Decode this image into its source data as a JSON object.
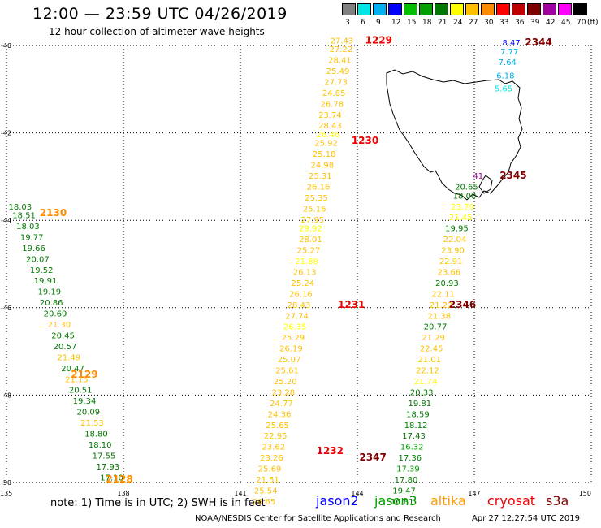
{
  "header": {
    "title": "12:00  —  23:59  UTC  04/26/2019",
    "subtitle": "12 hour collection of altimeter wave heights"
  },
  "color_scale": {
    "unit_label": "(ft)",
    "items": [
      {
        "label": "3",
        "color": "#808080"
      },
      {
        "label": "6",
        "color": "#00e5e5"
      },
      {
        "label": "9",
        "color": "#00b0f0"
      },
      {
        "label": "12",
        "color": "#0000ff"
      },
      {
        "label": "15",
        "color": "#00c000"
      },
      {
        "label": "18",
        "color": "#00a000"
      },
      {
        "label": "21",
        "color": "#007800"
      },
      {
        "label": "24",
        "color": "#ffff00"
      },
      {
        "label": "27",
        "color": "#ffc000"
      },
      {
        "label": "30",
        "color": "#ff8c00"
      },
      {
        "label": "33",
        "color": "#ff0000"
      },
      {
        "label": "36",
        "color": "#c00000"
      },
      {
        "label": "39",
        "color": "#800000"
      },
      {
        "label": "42",
        "color": "#a000a0"
      },
      {
        "label": "45",
        "color": "#ff00ff"
      },
      {
        "label": "70",
        "color": "#000000"
      }
    ]
  },
  "axes": {
    "lat_labels": [
      "-40",
      "-42",
      "-44",
      "-46",
      "-48",
      "-50"
    ],
    "lon_labels": [
      "135",
      "138",
      "141",
      "144",
      "147",
      "150"
    ]
  },
  "time_labels": [
    {
      "text": "1229",
      "lon": 144.2,
      "lat": -39.95,
      "color": "#ee0000"
    },
    {
      "text": "2344",
      "lon": 148.3,
      "lat": -40.0,
      "color": "#800000"
    },
    {
      "text": "1230",
      "lon": 143.85,
      "lat": -42.25,
      "color": "#ee0000"
    },
    {
      "text": "2345",
      "lon": 147.65,
      "lat": -43.05,
      "color": "#800000"
    },
    {
      "text": "2130",
      "lon": 135.85,
      "lat": -43.9,
      "color": "#ff8c00"
    },
    {
      "text": "1231",
      "lon": 143.5,
      "lat": -46.0,
      "color": "#ee0000"
    },
    {
      "text": "2346",
      "lon": 146.35,
      "lat": -46.0,
      "color": "#800000"
    },
    {
      "text": "2129",
      "lon": 136.65,
      "lat": -47.6,
      "color": "#ff8c00"
    },
    {
      "text": "1232",
      "lon": 142.95,
      "lat": -49.35,
      "color": "#ee0000"
    },
    {
      "text": "2347",
      "lon": 144.05,
      "lat": -49.5,
      "color": "#800000"
    },
    {
      "text": "2128",
      "lon": 137.55,
      "lat": -50.0,
      "color": "#ff8c00"
    }
  ],
  "tracks": [
    {
      "name": "2128-2130 pass (west)",
      "points": [
        {
          "v": "18.03",
          "lon": 135.35,
          "lat": -43.75,
          "color": "#007800"
        },
        {
          "v": "18.51",
          "lon": 135.45,
          "lat": -43.95,
          "color": "#007800"
        },
        {
          "v": "18.03",
          "lon": 135.55,
          "lat": -44.2,
          "color": "#007800"
        },
        {
          "v": "19.77",
          "lon": 135.65,
          "lat": -44.45,
          "color": "#007800"
        },
        {
          "v": "19.66",
          "lon": 135.7,
          "lat": -44.7,
          "color": "#007800"
        },
        {
          "v": "20.07",
          "lon": 135.8,
          "lat": -44.95,
          "color": "#007800"
        },
        {
          "v": "19.52",
          "lon": 135.9,
          "lat": -45.2,
          "color": "#007800"
        },
        {
          "v": "19.91",
          "lon": 136.0,
          "lat": -45.45,
          "color": "#007800"
        },
        {
          "v": "19.19",
          "lon": 136.1,
          "lat": -45.7,
          "color": "#007800"
        },
        {
          "v": "20.86",
          "lon": 136.15,
          "lat": -45.95,
          "color": "#007800"
        },
        {
          "v": "20.69",
          "lon": 136.25,
          "lat": -46.2,
          "color": "#007800"
        },
        {
          "v": "21.30",
          "lon": 136.35,
          "lat": -46.45,
          "color": "#ffc000"
        },
        {
          "v": "20.45",
          "lon": 136.45,
          "lat": -46.7,
          "color": "#007800"
        },
        {
          "v": "20.57",
          "lon": 136.5,
          "lat": -46.95,
          "color": "#007800"
        },
        {
          "v": "21.49",
          "lon": 136.6,
          "lat": -47.2,
          "color": "#ffc000"
        },
        {
          "v": "20.47",
          "lon": 136.7,
          "lat": -47.45,
          "color": "#007800"
        },
        {
          "v": "21.15",
          "lon": 136.8,
          "lat": -47.7,
          "color": "#ffc000"
        },
        {
          "v": "20.51",
          "lon": 136.9,
          "lat": -47.95,
          "color": "#007800"
        },
        {
          "v": "19.34",
          "lon": 137.0,
          "lat": -48.2,
          "color": "#007800"
        },
        {
          "v": "20.09",
          "lon": 137.1,
          "lat": -48.45,
          "color": "#007800"
        },
        {
          "v": "21.53",
          "lon": 137.2,
          "lat": -48.7,
          "color": "#ffc000"
        },
        {
          "v": "18.80",
          "lon": 137.3,
          "lat": -48.95,
          "color": "#007800"
        },
        {
          "v": "18.10",
          "lon": 137.4,
          "lat": -49.2,
          "color": "#007800"
        },
        {
          "v": "17.55",
          "lon": 137.5,
          "lat": -49.45,
          "color": "#007800"
        },
        {
          "v": "17.93",
          "lon": 137.6,
          "lat": -49.7,
          "color": "#007800"
        },
        {
          "v": "17.10",
          "lon": 137.7,
          "lat": -49.95,
          "color": "#007800"
        }
      ]
    },
    {
      "name": "1229-1232 pass (altika)",
      "points": [
        {
          "v": "27.43",
          "lon": 143.6,
          "lat": -39.95,
          "color": "#ffc000"
        },
        {
          "v": "27.22",
          "lon": 143.58,
          "lat": -40.15,
          "color": "#ffc000"
        },
        {
          "v": "28.41",
          "lon": 143.55,
          "lat": -40.4,
          "color": "#ffc000"
        },
        {
          "v": "25.49",
          "lon": 143.5,
          "lat": -40.65,
          "color": "#ffc000"
        },
        {
          "v": "27.73",
          "lon": 143.45,
          "lat": -40.9,
          "color": "#ffc000"
        },
        {
          "v": "24.85",
          "lon": 143.4,
          "lat": -41.15,
          "color": "#ffc000"
        },
        {
          "v": "26.78",
          "lon": 143.35,
          "lat": -41.4,
          "color": "#ffc000"
        },
        {
          "v": "23.74",
          "lon": 143.3,
          "lat": -41.65,
          "color": "#ffc000"
        },
        {
          "v": "28.43",
          "lon": 143.3,
          "lat": -41.9,
          "color": "#ffc000"
        },
        {
          "v": "26.46",
          "lon": 143.25,
          "lat": -42.1,
          "color": "#ffff00"
        },
        {
          "v": "25.92",
          "lon": 143.2,
          "lat": -42.3,
          "color": "#ffc000"
        },
        {
          "v": "25.18",
          "lon": 143.15,
          "lat": -42.55,
          "color": "#ffc000"
        },
        {
          "v": "24.98",
          "lon": 143.1,
          "lat": -42.8,
          "color": "#ffc000"
        },
        {
          "v": "25.31",
          "lon": 143.05,
          "lat": -43.05,
          "color": "#ffc000"
        },
        {
          "v": "26.16",
          "lon": 143.0,
          "lat": -43.3,
          "color": "#ffc000"
        },
        {
          "v": "25.35",
          "lon": 142.95,
          "lat": -43.55,
          "color": "#ffc000"
        },
        {
          "v": "25.16",
          "lon": 142.9,
          "lat": -43.8,
          "color": "#ffc000"
        },
        {
          "v": "27.95",
          "lon": 142.85,
          "lat": -44.05,
          "color": "#ffc000"
        },
        {
          "v": "29.92",
          "lon": 142.8,
          "lat": -44.25,
          "color": "#ffff00"
        },
        {
          "v": "28.01",
          "lon": 142.8,
          "lat": -44.5,
          "color": "#ffc000"
        },
        {
          "v": "25.27",
          "lon": 142.75,
          "lat": -44.75,
          "color": "#ffc000"
        },
        {
          "v": "21.88",
          "lon": 142.7,
          "lat": -45.0,
          "color": "#ffff00"
        },
        {
          "v": "26.13",
          "lon": 142.65,
          "lat": -45.25,
          "color": "#ffc000"
        },
        {
          "v": "25.24",
          "lon": 142.6,
          "lat": -45.5,
          "color": "#ffc000"
        },
        {
          "v": "26.16",
          "lon": 142.55,
          "lat": -45.75,
          "color": "#ffc000"
        },
        {
          "v": "28.43",
          "lon": 142.5,
          "lat": -46.0,
          "color": "#ffc000"
        },
        {
          "v": "27.74",
          "lon": 142.45,
          "lat": -46.25,
          "color": "#ffc000"
        },
        {
          "v": "26.35",
          "lon": 142.4,
          "lat": -46.5,
          "color": "#ffff00"
        },
        {
          "v": "25.29",
          "lon": 142.35,
          "lat": -46.75,
          "color": "#ffc000"
        },
        {
          "v": "26.19",
          "lon": 142.3,
          "lat": -47.0,
          "color": "#ffc000"
        },
        {
          "v": "25.07",
          "lon": 142.25,
          "lat": -47.25,
          "color": "#ffc000"
        },
        {
          "v": "25.61",
          "lon": 142.2,
          "lat": -47.5,
          "color": "#ffc000"
        },
        {
          "v": "25.20",
          "lon": 142.15,
          "lat": -47.75,
          "color": "#ffc000"
        },
        {
          "v": "23.28",
          "lon": 142.1,
          "lat": -48.0,
          "color": "#ffc000"
        },
        {
          "v": "24.77",
          "lon": 142.05,
          "lat": -48.25,
          "color": "#ffc000"
        },
        {
          "v": "24.36",
          "lon": 142.0,
          "lat": -48.5,
          "color": "#ffc000"
        },
        {
          "v": "25.65",
          "lon": 141.95,
          "lat": -48.75,
          "color": "#ffc000"
        },
        {
          "v": "22.95",
          "lon": 141.9,
          "lat": -49.0,
          "color": "#ffc000"
        },
        {
          "v": "23.62",
          "lon": 141.85,
          "lat": -49.25,
          "color": "#ffc000"
        },
        {
          "v": "23.26",
          "lon": 141.8,
          "lat": -49.5,
          "color": "#ffc000"
        },
        {
          "v": "25.69",
          "lon": 141.75,
          "lat": -49.75,
          "color": "#ffc000"
        },
        {
          "v": "21.51",
          "lon": 141.7,
          "lat": -50.0,
          "color": "#ffc000"
        },
        {
          "v": "25.54",
          "lon": 141.65,
          "lat": -50.25,
          "color": "#ffc000"
        },
        {
          "v": "26.65",
          "lon": 141.6,
          "lat": -50.5,
          "color": "#ffc000"
        }
      ]
    },
    {
      "name": "2344-2347 pass (east)",
      "points": [
        {
          "v": "8.47",
          "lon": 147.95,
          "lat": -40.0,
          "color": "#0000ff"
        },
        {
          "v": "7.77",
          "lon": 147.9,
          "lat": -40.2,
          "color": "#00b0f0"
        },
        {
          "v": "7.64",
          "lon": 147.85,
          "lat": -40.45,
          "color": "#00b0f0"
        },
        {
          "v": "6.18",
          "lon": 147.8,
          "lat": -40.75,
          "color": "#00b0f0"
        },
        {
          "v": "5.65",
          "lon": 147.75,
          "lat": -41.05,
          "color": "#00e5e5"
        },
        {
          "v": "41",
          "lon": 147.1,
          "lat": -43.05,
          "color": "#a000a0"
        },
        {
          "v": "20.65",
          "lon": 146.8,
          "lat": -43.3,
          "color": "#007800"
        },
        {
          "v": "18.00",
          "lon": 146.75,
          "lat": -43.5,
          "color": "#007800"
        },
        {
          "v": "23.79",
          "lon": 146.7,
          "lat": -43.75,
          "color": "#ffff00"
        },
        {
          "v": "21.45",
          "lon": 146.65,
          "lat": -44.0,
          "color": "#ffff00"
        },
        {
          "v": "19.95",
          "lon": 146.55,
          "lat": -44.25,
          "color": "#007800"
        },
        {
          "v": "22.04",
          "lon": 146.5,
          "lat": -44.5,
          "color": "#ffc000"
        },
        {
          "v": "23.90",
          "lon": 146.45,
          "lat": -44.75,
          "color": "#ffc000"
        },
        {
          "v": "22.91",
          "lon": 146.4,
          "lat": -45.0,
          "color": "#ffc000"
        },
        {
          "v": "23.66",
          "lon": 146.35,
          "lat": -45.25,
          "color": "#ffc000"
        },
        {
          "v": "20.93",
          "lon": 146.3,
          "lat": -45.5,
          "color": "#007800"
        },
        {
          "v": "22.11",
          "lon": 146.2,
          "lat": -45.75,
          "color": "#ffc000"
        },
        {
          "v": "21.22",
          "lon": 146.15,
          "lat": -46.0,
          "color": "#ffc000"
        },
        {
          "v": "21.38",
          "lon": 146.1,
          "lat": -46.25,
          "color": "#ffc000"
        },
        {
          "v": "20.77",
          "lon": 146.0,
          "lat": -46.5,
          "color": "#007800"
        },
        {
          "v": "21.29",
          "lon": 145.95,
          "lat": -46.75,
          "color": "#ffc000"
        },
        {
          "v": "22.45",
          "lon": 145.9,
          "lat": -47.0,
          "color": "#ffc000"
        },
        {
          "v": "21.01",
          "lon": 145.85,
          "lat": -47.25,
          "color": "#ffc000"
        },
        {
          "v": "22.12",
          "lon": 145.8,
          "lat": -47.5,
          "color": "#ffc000"
        },
        {
          "v": "21.74",
          "lon": 145.75,
          "lat": -47.75,
          "color": "#ffff00"
        },
        {
          "v": "20.33",
          "lon": 145.65,
          "lat": -48.0,
          "color": "#007800"
        },
        {
          "v": "19.81",
          "lon": 145.6,
          "lat": -48.25,
          "color": "#007800"
        },
        {
          "v": "18.59",
          "lon": 145.55,
          "lat": -48.5,
          "color": "#007800"
        },
        {
          "v": "18.12",
          "lon": 145.5,
          "lat": -48.75,
          "color": "#007800"
        },
        {
          "v": "17.43",
          "lon": 145.45,
          "lat": -49.0,
          "color": "#007800"
        },
        {
          "v": "16.32",
          "lon": 145.4,
          "lat": -49.25,
          "color": "#00a000"
        },
        {
          "v": "17.36",
          "lon": 145.35,
          "lat": -49.5,
          "color": "#007800"
        },
        {
          "v": "17.39",
          "lon": 145.3,
          "lat": -49.75,
          "color": "#00a000"
        },
        {
          "v": "17.80",
          "lon": 145.25,
          "lat": -50.0,
          "color": "#007800"
        },
        {
          "v": "19.47",
          "lon": 145.2,
          "lat": -50.25,
          "color": "#007800"
        },
        {
          "v": "16.81",
          "lon": 145.15,
          "lat": -50.5,
          "color": "#007800"
        }
      ]
    }
  ],
  "note": "note:  1) Time is in UTC;  2) SWH is in feet",
  "legend": [
    {
      "label": "jason2",
      "color": "#0000ff"
    },
    {
      "label": "jason3",
      "color": "#00a000"
    },
    {
      "label": "altika",
      "color": "#ff9900"
    },
    {
      "label": "cryosat",
      "color": "#ee0000"
    },
    {
      "label": "s3a",
      "color": "#800000"
    }
  ],
  "footer": {
    "credit": "NOAA/NESDIS Center for Satellite Applications and Research",
    "timestamp": "Apr 27 12:27:54 UTC 2019"
  }
}
